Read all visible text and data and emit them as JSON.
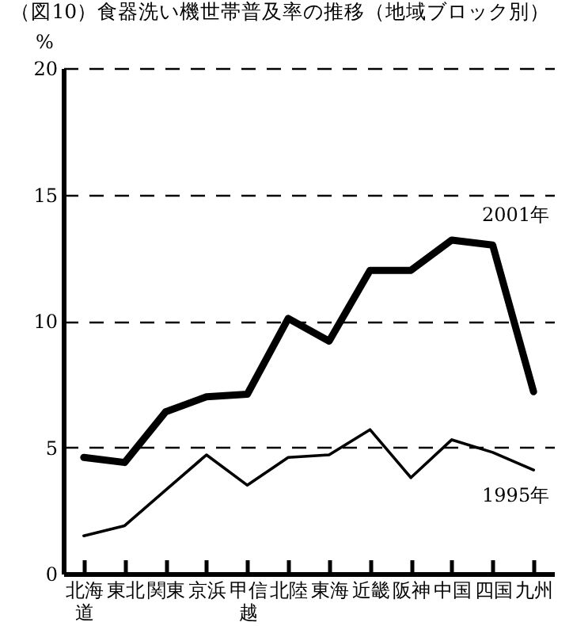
{
  "chart_data": {
    "type": "line",
    "title": "（図10）食器洗い機世帯普及率の推移（地域ブロック別）",
    "ylabel": "%",
    "categories": [
      "北海道",
      "東北",
      "関東",
      "京浜",
      "甲信越",
      "北陸",
      "東海",
      "近畿",
      "阪神",
      "中国",
      "四国",
      "九州"
    ],
    "series": [
      {
        "name": "2001年",
        "color": "#000000",
        "values": [
          4.6,
          4.4,
          6.4,
          7.0,
          7.1,
          10.1,
          9.2,
          12.0,
          12.0,
          13.2,
          13.0,
          7.2
        ]
      },
      {
        "name": "1995年",
        "color": "#000000",
        "values": [
          1.5,
          1.9,
          3.3,
          4.7,
          3.5,
          4.6,
          4.7,
          5.7,
          3.8,
          5.3,
          4.8,
          4.1
        ]
      }
    ],
    "ylim": [
      0,
      20
    ],
    "yticks": [
      0,
      5,
      10,
      15,
      20
    ],
    "grid": "y",
    "line_style": "solid",
    "marker": "none"
  }
}
